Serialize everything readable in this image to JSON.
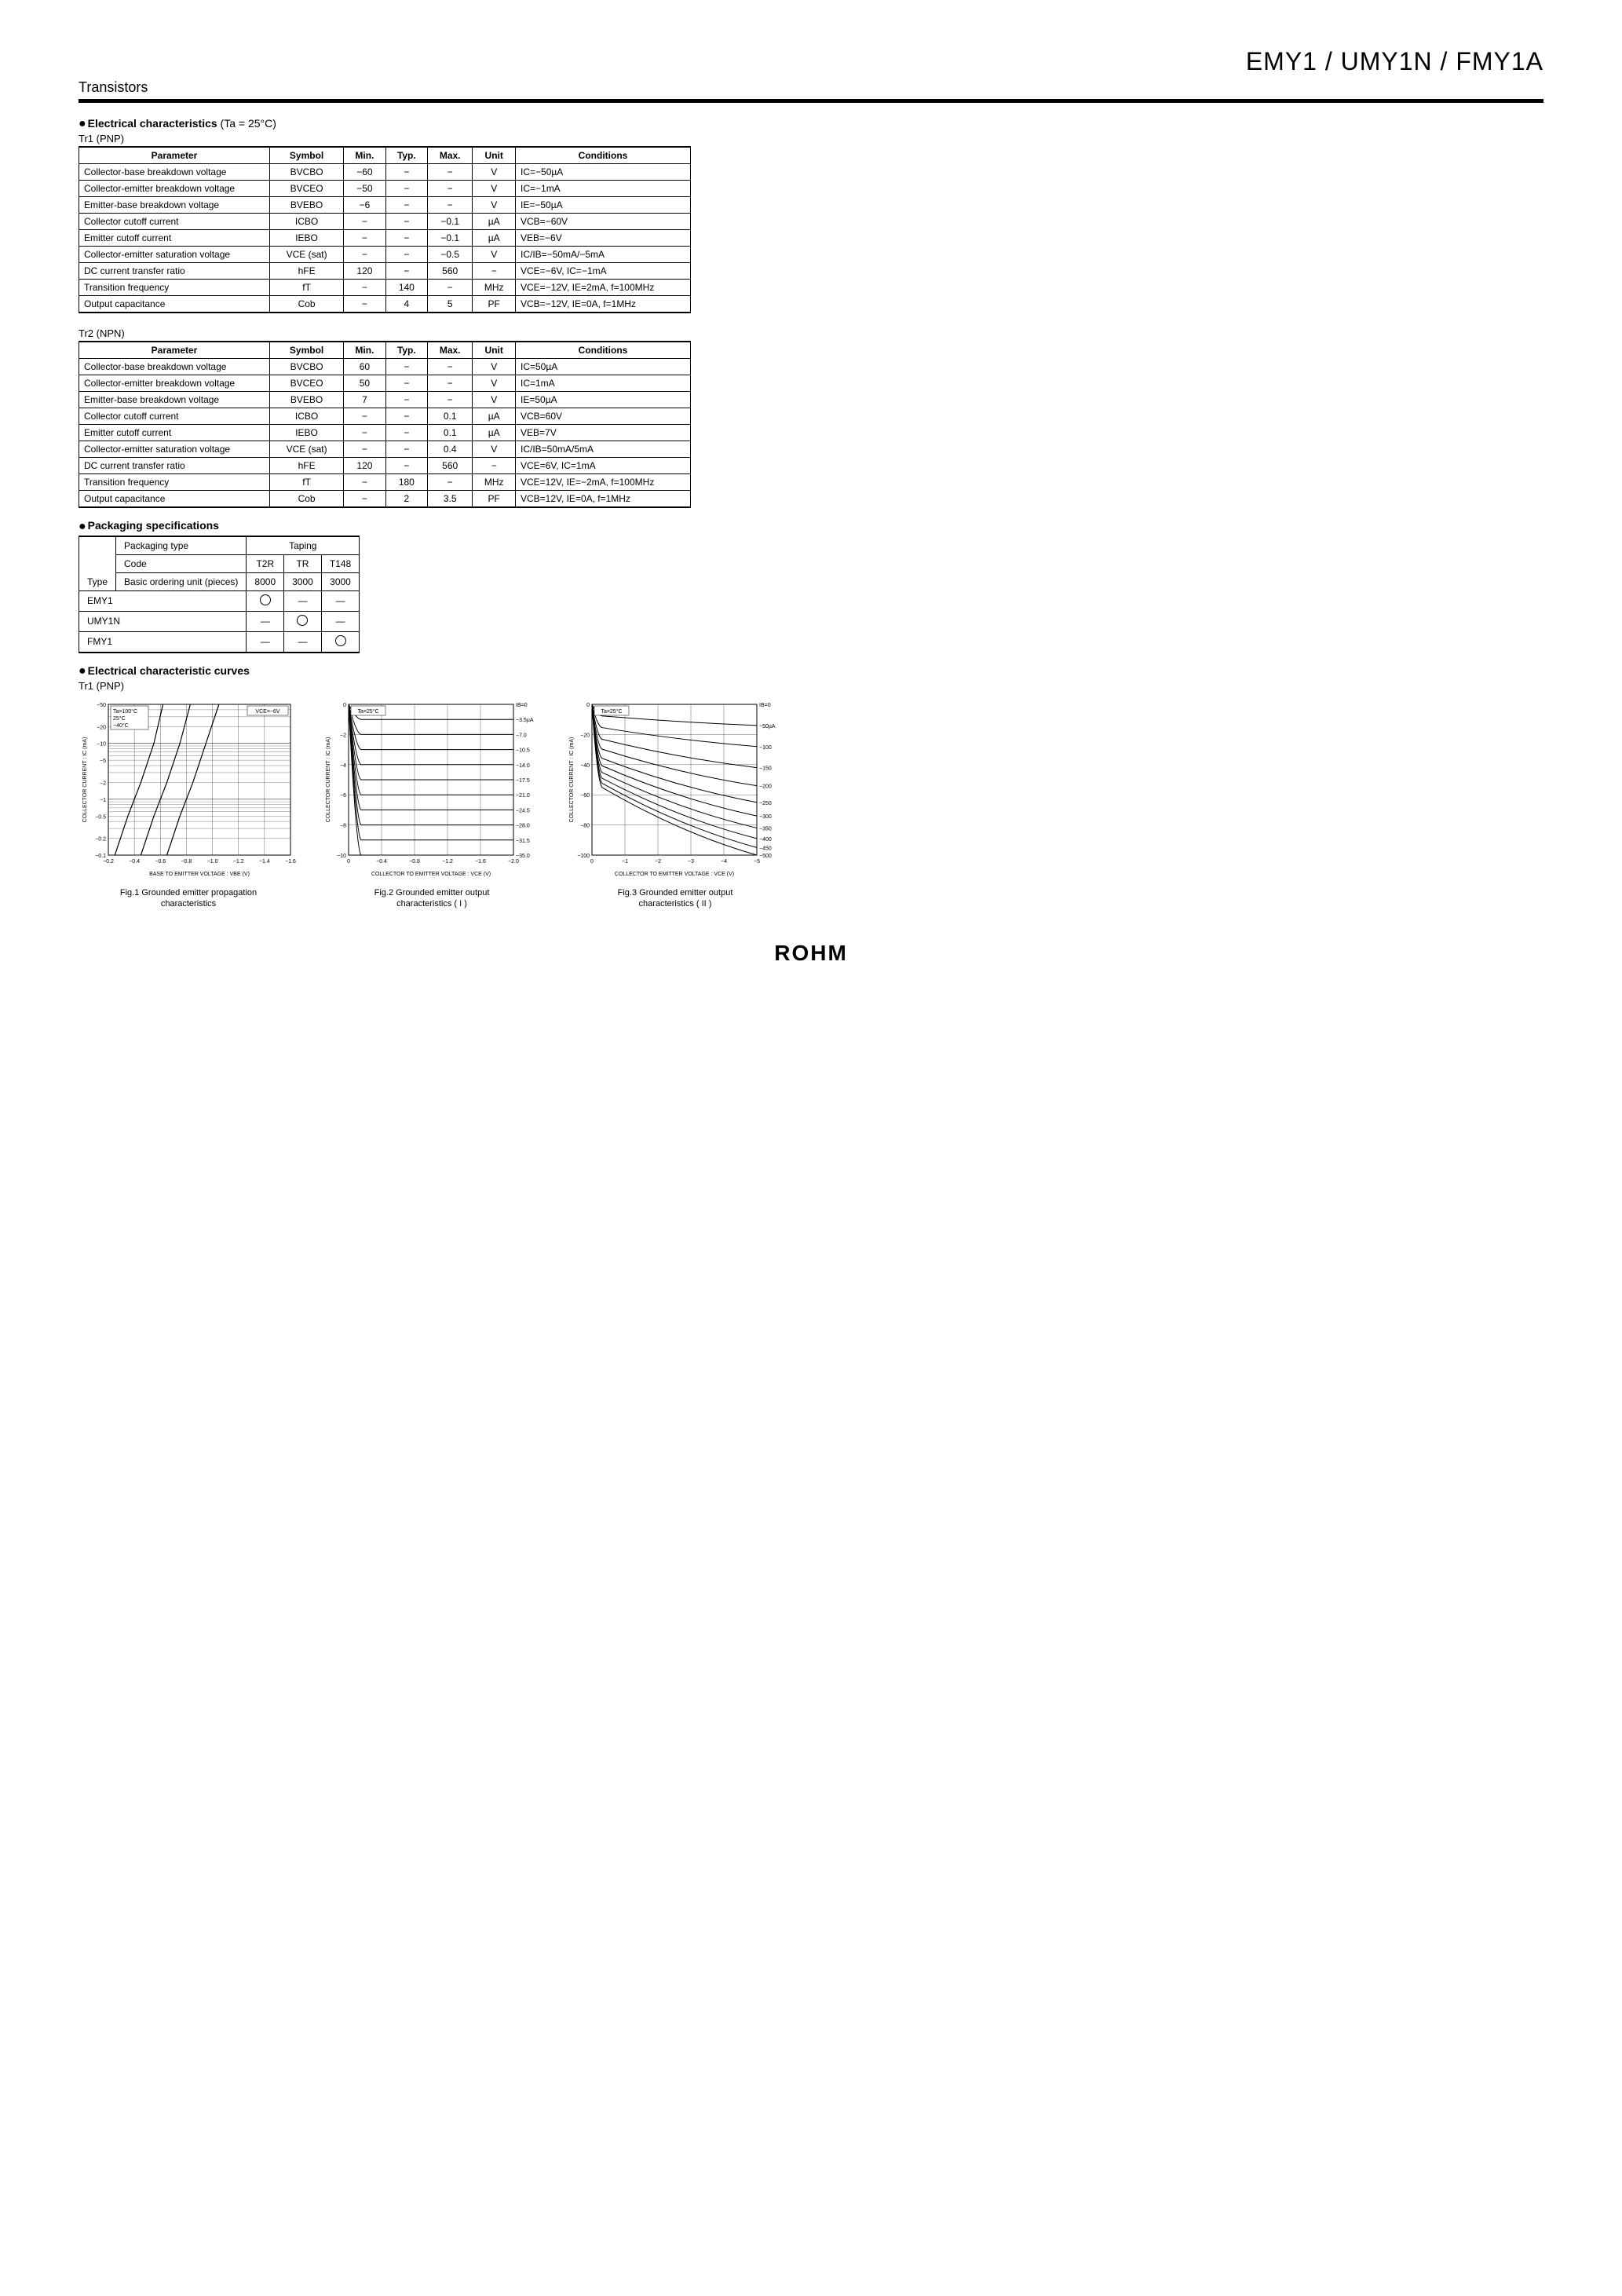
{
  "header": {
    "part_numbers": "EMY1 / UMY1N / FMY1A",
    "category": "Transistors"
  },
  "section_elec_char": {
    "title": "Electrical characteristics",
    "cond": " (Ta = 25°C)"
  },
  "tr1": {
    "label": "Tr1 (PNP)",
    "columns": [
      "Parameter",
      "Symbol",
      "Min.",
      "Typ.",
      "Max.",
      "Unit",
      "Conditions"
    ],
    "rows": [
      {
        "param": "Collector-base breakdown voltage",
        "symbol": "BVCBO",
        "min": "−60",
        "typ": "−",
        "max": "−",
        "unit": "V",
        "cond": "IC=−50µA"
      },
      {
        "param": "Collector-emitter breakdown voltage",
        "symbol": "BVCEO",
        "min": "−50",
        "typ": "−",
        "max": "−",
        "unit": "V",
        "cond": "IC=−1mA"
      },
      {
        "param": "Emitter-base breakdown voltage",
        "symbol": "BVEBO",
        "min": "−6",
        "typ": "−",
        "max": "−",
        "unit": "V",
        "cond": "IE=−50µA"
      },
      {
        "param": "Collector cutoff current",
        "symbol": "ICBO",
        "min": "−",
        "typ": "−",
        "max": "−0.1",
        "unit": "µA",
        "cond": "VCB=−60V"
      },
      {
        "param": "Emitter cutoff current",
        "symbol": "IEBO",
        "min": "−",
        "typ": "−",
        "max": "−0.1",
        "unit": "µA",
        "cond": "VEB=−6V"
      },
      {
        "param": "Collector-emitter saturation voltage",
        "symbol": "VCE (sat)",
        "min": "−",
        "typ": "−",
        "max": "−0.5",
        "unit": "V",
        "cond": "IC/IB=−50mA/−5mA"
      },
      {
        "param": "DC current transfer ratio",
        "symbol": "hFE",
        "min": "120",
        "typ": "−",
        "max": "560",
        "unit": "−",
        "cond": "VCE=−6V, IC=−1mA"
      },
      {
        "param": "Transition frequency",
        "symbol": "fT",
        "min": "−",
        "typ": "140",
        "max": "−",
        "unit": "MHz",
        "cond": "VCE=−12V, IE=2mA, f=100MHz"
      },
      {
        "param": "Output capacitance",
        "symbol": "Cob",
        "min": "−",
        "typ": "4",
        "max": "5",
        "unit": "PF",
        "cond": "VCB=−12V, IE=0A, f=1MHz"
      }
    ]
  },
  "tr2": {
    "label": "Tr2 (NPN)",
    "columns": [
      "Parameter",
      "Symbol",
      "Min.",
      "Typ.",
      "Max.",
      "Unit",
      "Conditions"
    ],
    "rows": [
      {
        "param": "Collector-base breakdown voltage",
        "symbol": "BVCBO",
        "min": "60",
        "typ": "−",
        "max": "−",
        "unit": "V",
        "cond": "IC=50µA"
      },
      {
        "param": "Collector-emitter breakdown voltage",
        "symbol": "BVCEO",
        "min": "50",
        "typ": "−",
        "max": "−",
        "unit": "V",
        "cond": "IC=1mA"
      },
      {
        "param": "Emitter-base breakdown voltage",
        "symbol": "BVEBO",
        "min": "7",
        "typ": "−",
        "max": "−",
        "unit": "V",
        "cond": "IE=50µA"
      },
      {
        "param": "Collector cutoff current",
        "symbol": "ICBO",
        "min": "−",
        "typ": "−",
        "max": "0.1",
        "unit": "µA",
        "cond": "VCB=60V"
      },
      {
        "param": "Emitter cutoff current",
        "symbol": "IEBO",
        "min": "−",
        "typ": "−",
        "max": "0.1",
        "unit": "µA",
        "cond": "VEB=7V"
      },
      {
        "param": "Collector-emitter saturation voltage",
        "symbol": "VCE (sat)",
        "min": "−",
        "typ": "−",
        "max": "0.4",
        "unit": "V",
        "cond": "IC/IB=50mA/5mA"
      },
      {
        "param": "DC current transfer ratio",
        "symbol": "hFE",
        "min": "120",
        "typ": "−",
        "max": "560",
        "unit": "−",
        "cond": "VCE=6V, IC=1mA"
      },
      {
        "param": "Transition frequency",
        "symbol": "fT",
        "min": "−",
        "typ": "180",
        "max": "−",
        "unit": "MHz",
        "cond": "VCE=12V, IE=−2mA, f=100MHz"
      },
      {
        "param": "Output capacitance",
        "symbol": "Cob",
        "min": "−",
        "typ": "2",
        "max": "3.5",
        "unit": "PF",
        "cond": "VCB=12V, IE=0A, f=1MHz"
      }
    ]
  },
  "packaging": {
    "title": "Packaging specifications",
    "header_packaging_type": "Packaging type",
    "header_taping": "Taping",
    "header_code": "Code",
    "codes": [
      "T2R",
      "TR",
      "T148"
    ],
    "header_basic_order": "Basic ordering unit (pieces)",
    "basic_order_values": [
      "8000",
      "3000",
      "3000"
    ],
    "type_label": "Type",
    "rows": [
      {
        "type": "EMY1",
        "cells": [
          "○",
          "—",
          "—"
        ]
      },
      {
        "type": "UMY1N",
        "cells": [
          "—",
          "○",
          "—"
        ]
      },
      {
        "type": "FMY1",
        "cells": [
          "—",
          "—",
          "○"
        ]
      }
    ]
  },
  "curves": {
    "title": "Electrical characteristic curves",
    "sub": "Tr1 (PNP)",
    "fig1": {
      "type": "semilogy-line",
      "caption_1": "Fig.1  Grounded emitter propagation",
      "caption_2": "characteristics",
      "xlabel": "BASE  TO  EMITTER  VOLTAGE : VBE (V)",
      "ylabel": "COLLECTOR  CURRENT : IC (mA)",
      "cond_box": "VCE=−6V",
      "temp_labels": [
        "Ta=100°C",
        "25°C",
        "−40°C"
      ],
      "x_ticks": [
        "−0.2",
        "−0.4",
        "−0.6",
        "−0.8",
        "−1.0",
        "−1.2",
        "−1.4",
        "−1.6"
      ],
      "y_ticks": [
        "−0.1",
        "−0.2",
        "−0.5",
        "−1",
        "−2",
        "−5",
        "−10",
        "−20",
        "−50"
      ],
      "xlim": [
        -0.2,
        -1.6
      ],
      "ylim_log": [
        -0.1,
        -50
      ],
      "line_color": "#000000",
      "line_width": 1,
      "grid_color": "#000000",
      "background_color": "#ffffff",
      "series": {
        "100C": [
          [
            -0.25,
            -0.1
          ],
          [
            -0.35,
            -0.5
          ],
          [
            -0.45,
            -2
          ],
          [
            -0.55,
            -10
          ],
          [
            -0.62,
            -50
          ]
        ],
        "25C": [
          [
            -0.45,
            -0.1
          ],
          [
            -0.55,
            -0.5
          ],
          [
            -0.65,
            -2
          ],
          [
            -0.75,
            -10
          ],
          [
            -0.83,
            -50
          ]
        ],
        "-40C": [
          [
            -0.65,
            -0.1
          ],
          [
            -0.75,
            -0.5
          ],
          [
            -0.85,
            -2
          ],
          [
            -0.95,
            -10
          ],
          [
            -1.05,
            -50
          ]
        ]
      }
    },
    "fig2": {
      "type": "line",
      "caption_1": "Fig.2  Grounded emitter output",
      "caption_2": "characteristics ( I )",
      "xlabel": "COLLECTOR  TO  EMITTER  VOLTAGE : VCE (V)",
      "ylabel": "COLLECTOR  CURRENT : IC (mA)",
      "cond_box": "Ta=25°C",
      "ib_labels": [
        "−35.0",
        "−31.5",
        "−28.0",
        "−24.5",
        "−21.0",
        "−17.5",
        "−14.0",
        "−10.5",
        "−7.0",
        "−3.5µA",
        "IB=0"
      ],
      "x_ticks": [
        "0",
        "−0.4",
        "−0.8",
        "−1.2",
        "−1.6",
        "−2.0"
      ],
      "y_ticks": [
        "0",
        "−2",
        "−4",
        "−6",
        "−8",
        "−10"
      ],
      "xlim": [
        0,
        -2.0
      ],
      "ylim": [
        0,
        -10
      ],
      "line_color": "#000000",
      "line_width": 1,
      "grid_color": "#000000",
      "background_color": "#ffffff",
      "series_plateau_ic": [
        0,
        -1.0,
        -2.0,
        -3.0,
        -4.0,
        -5.0,
        -6.0,
        -7.0,
        -8.0,
        -9.0,
        -10.0
      ],
      "knee_vce": -0.15
    },
    "fig3": {
      "type": "line",
      "caption_1": "Fig.3  Grounded emitter output",
      "caption_2": "characteristics ( II )",
      "xlabel": "COLLECTOR  TO  EMITTER  VOLTAGE : VCE (V)",
      "ylabel": "COLLECTOR  CURRENT : IC (mA)",
      "cond_box": "Ta=25°C",
      "ib_labels": [
        "−500",
        "−450",
        "−400",
        "−350",
        "−300",
        "−250",
        "−200",
        "−150",
        "−100",
        "−50µA",
        "IB=0"
      ],
      "x_ticks": [
        "0",
        "−1",
        "−2",
        "−3",
        "−4",
        "−5"
      ],
      "y_ticks": [
        "0",
        "−20",
        "−40",
        "−60",
        "−80",
        "−100"
      ],
      "xlim": [
        0,
        -5
      ],
      "ylim": [
        0,
        -100
      ],
      "line_color": "#000000",
      "line_width": 1,
      "grid_color": "#000000",
      "background_color": "#ffffff",
      "series_end_ic": [
        0,
        -14,
        -28,
        -42,
        -54,
        -65,
        -74,
        -82,
        -89,
        -95,
        -100
      ],
      "knee_vce": -0.3
    }
  },
  "footer_logo": "ROHM"
}
